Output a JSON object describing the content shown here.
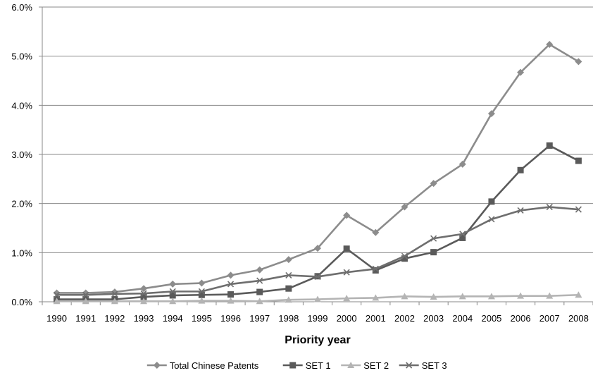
{
  "chart_data": {
    "type": "line",
    "title": "",
    "xlabel": "Priority year",
    "ylabel": "",
    "ylim": [
      0,
      6.0
    ],
    "yticks": [
      0,
      1,
      2,
      3,
      4,
      5,
      6
    ],
    "ytick_labels": [
      "0.0%",
      "1.0%",
      "2.0%",
      "3.0%",
      "4.0%",
      "5.0%",
      "6.0%"
    ],
    "categories": [
      "1990",
      "1991",
      "1992",
      "1993",
      "1994",
      "1995",
      "1996",
      "1997",
      "1998",
      "1999",
      "2000",
      "2001",
      "2002",
      "2003",
      "2004",
      "2005",
      "2006",
      "2007",
      "2008"
    ],
    "grid": "horizontal",
    "legend_position": "bottom",
    "series": [
      {
        "name": "Total Chinese Patents",
        "marker": "diamond",
        "color": "#8c8c8c",
        "values": [
          0.18,
          0.18,
          0.2,
          0.27,
          0.36,
          0.38,
          0.54,
          0.65,
          0.86,
          1.09,
          1.76,
          1.41,
          1.93,
          2.41,
          2.8,
          3.83,
          4.67,
          5.24,
          4.89
        ]
      },
      {
        "name": "SET 1",
        "marker": "square",
        "color": "#5a5a5a",
        "values": [
          0.05,
          0.05,
          0.05,
          0.1,
          0.13,
          0.14,
          0.15,
          0.2,
          0.27,
          0.52,
          1.08,
          0.64,
          0.88,
          1.01,
          1.3,
          2.04,
          2.68,
          3.18,
          2.87
        ]
      },
      {
        "name": "SET 2",
        "marker": "triangle",
        "color": "#b4b4b4",
        "values": [
          0.01,
          0.01,
          0.01,
          0.01,
          0.01,
          0.02,
          0.02,
          0.01,
          0.04,
          0.05,
          0.07,
          0.08,
          0.11,
          0.1,
          0.11,
          0.11,
          0.12,
          0.12,
          0.14
        ]
      },
      {
        "name": "SET 3",
        "marker": "x",
        "color": "#6e6e6e",
        "values": [
          0.14,
          0.14,
          0.16,
          0.17,
          0.21,
          0.21,
          0.36,
          0.43,
          0.54,
          0.51,
          0.6,
          0.67,
          0.93,
          1.29,
          1.38,
          1.68,
          1.86,
          1.93,
          1.88
        ]
      }
    ]
  }
}
